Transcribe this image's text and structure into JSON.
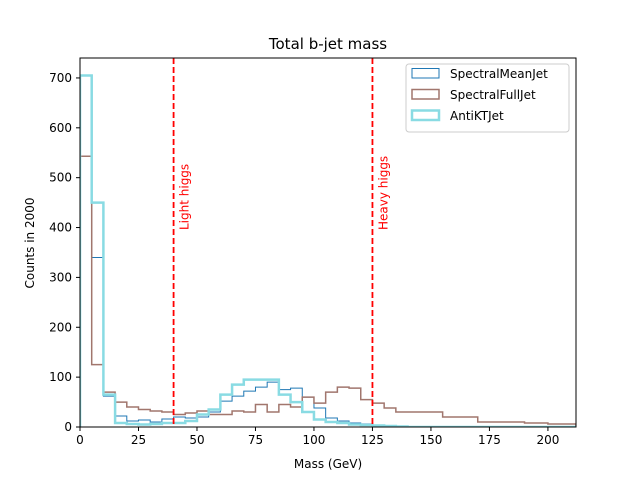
{
  "chart_data": {
    "type": "histogram",
    "title": "Total b-jet mass",
    "xlabel": "Mass (GeV)",
    "ylabel": "Counts in 2000",
    "xlim": [
      0,
      212
    ],
    "ylim": [
      0,
      740
    ],
    "grid": false,
    "legend_position": "top-right",
    "xticks": [
      0,
      25,
      50,
      75,
      100,
      125,
      150,
      175,
      200
    ],
    "yticks": [
      0,
      100,
      200,
      300,
      400,
      500,
      600,
      700
    ],
    "vlines": [
      {
        "x": 40,
        "label": "Light higgs",
        "color": "#ff0000"
      },
      {
        "x": 125,
        "label": "Heavy higgs",
        "color": "#ff0000"
      }
    ],
    "series": [
      {
        "name": "SpectralMeanJet",
        "color": "#1f77b4",
        "linewidth": 1,
        "edges": [
          0,
          5,
          10,
          15,
          20,
          25,
          30,
          35,
          40,
          45,
          50,
          55,
          60,
          65,
          70,
          75,
          80,
          85,
          90,
          95,
          100,
          105,
          110,
          115,
          120,
          125,
          130,
          135,
          140,
          145,
          150,
          155,
          160,
          170,
          180,
          190,
          200,
          212
        ],
        "values": [
          705,
          340,
          62,
          22,
          12,
          14,
          10,
          16,
          20,
          18,
          20,
          30,
          52,
          62,
          72,
          80,
          90,
          75,
          78,
          60,
          38,
          18,
          12,
          8,
          6,
          4,
          3,
          2,
          1,
          1,
          1,
          0,
          0,
          0,
          0,
          0,
          0
        ]
      },
      {
        "name": "SpectralFullJet",
        "color": "#a1766d",
        "linewidth": 1.5,
        "edges": [
          0,
          5,
          10,
          15,
          20,
          25,
          30,
          35,
          40,
          45,
          50,
          55,
          60,
          65,
          70,
          75,
          80,
          85,
          90,
          95,
          100,
          105,
          110,
          115,
          120,
          125,
          130,
          135,
          140,
          145,
          150,
          155,
          160,
          170,
          180,
          190,
          200,
          212
        ],
        "values": [
          543,
          125,
          70,
          50,
          40,
          35,
          32,
          30,
          25,
          28,
          32,
          25,
          25,
          32,
          30,
          45,
          30,
          45,
          40,
          60,
          48,
          70,
          80,
          78,
          55,
          48,
          38,
          30,
          30,
          30,
          30,
          20,
          20,
          10,
          10,
          8,
          6
        ]
      },
      {
        "name": "AntiKTJet",
        "color": "#89dbe3",
        "linewidth": 2.5,
        "edges": [
          0,
          5,
          10,
          15,
          20,
          25,
          30,
          35,
          40,
          45,
          50,
          55,
          60,
          65,
          70,
          75,
          80,
          85,
          90,
          95,
          100,
          105,
          110,
          115,
          120,
          125,
          130,
          135,
          140,
          145,
          150,
          155,
          160,
          170,
          180,
          190,
          200,
          212
        ],
        "values": [
          705,
          450,
          65,
          8,
          6,
          5,
          6,
          8,
          8,
          12,
          25,
          35,
          65,
          85,
          95,
          95,
          95,
          65,
          50,
          30,
          15,
          10,
          8,
          5,
          4,
          3,
          2,
          1,
          0,
          0,
          0,
          0,
          0,
          0,
          0,
          0,
          0
        ]
      }
    ]
  }
}
